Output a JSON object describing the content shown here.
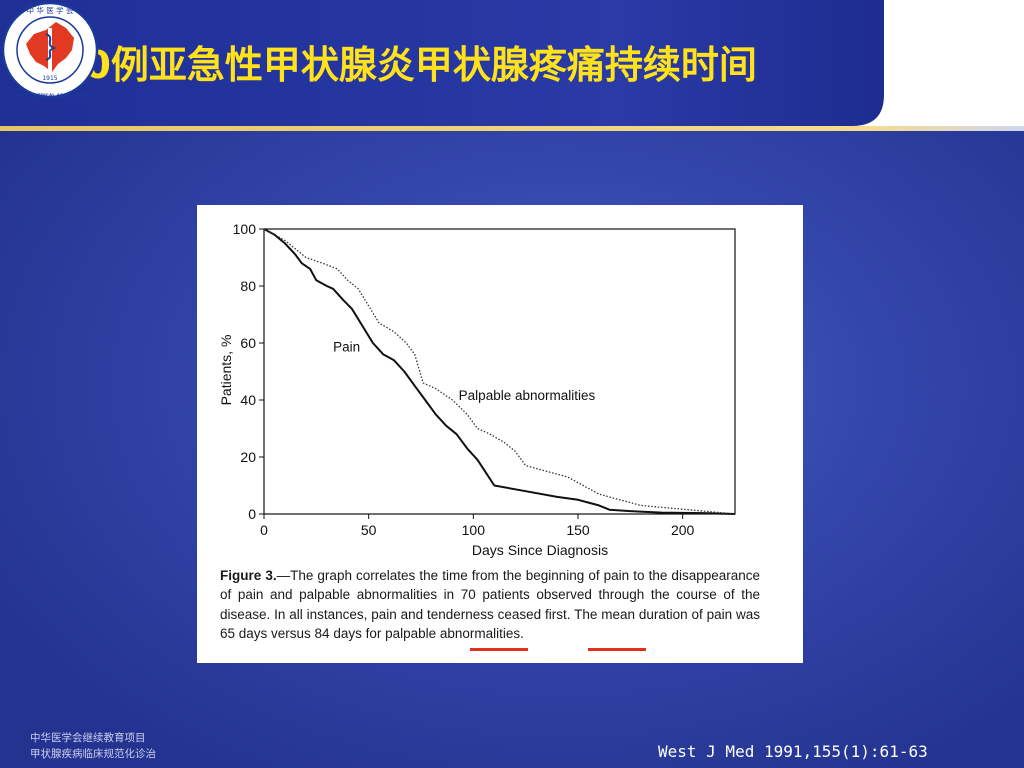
{
  "slide": {
    "title": "70例亚急性甲状腺炎甲状腺疼痛持续时间",
    "footer_line1": "中华医学会继续教育项目",
    "footer_line2": "甲状腺疾病临床规范化诊治",
    "citation": "West J Med 1991,155(1):61-63"
  },
  "logo": {
    "icon": "chinese-medical-association-seal",
    "top_text": "中 华 医 学 会",
    "ring_text": "CHINESE MEDICAL ASSOCIATION",
    "year": "1915"
  },
  "figure": {
    "caption_label": "Figure 3.",
    "caption_text": "—The graph correlates the time from the beginning of pain to the disappearance of pain and palpable abnormalities in 70 patients observed through the course of the disease. In all instances, pain and tenderness ceased first. The mean duration of pain was 65 days versus 84 days for palpable abnormalities.",
    "highlight_1": "65 days",
    "highlight_2": "84 days"
  },
  "chart_data": {
    "type": "line",
    "title": "",
    "xlabel": "Days Since Diagnosis",
    "ylabel": "Patients, %",
    "xlim": [
      0,
      225
    ],
    "ylim": [
      0,
      100
    ],
    "xticks": [
      0,
      50,
      100,
      150,
      200
    ],
    "yticks": [
      0,
      20,
      40,
      60,
      80,
      100
    ],
    "grid": false,
    "series": [
      {
        "name": "Pain",
        "style": "solid",
        "color": "#111111",
        "x": [
          0,
          5,
          10,
          15,
          18,
          22,
          25,
          30,
          33,
          38,
          42,
          47,
          52,
          57,
          62,
          67,
          72,
          77,
          82,
          87,
          92,
          97,
          102,
          110,
          125,
          140,
          150,
          155,
          160,
          165,
          175,
          190,
          210,
          225
        ],
        "y": [
          100,
          98,
          95,
          91,
          88,
          86,
          82,
          80,
          79,
          75,
          72,
          66,
          60,
          56,
          54,
          50,
          45,
          40,
          35,
          31,
          28,
          23,
          19,
          10,
          8,
          6,
          5,
          4,
          3,
          1.5,
          1,
          0.5,
          0.3,
          0
        ]
      },
      {
        "name": "Palpable abnormalities",
        "style": "dotted",
        "color": "#333333",
        "x": [
          0,
          5,
          10,
          15,
          20,
          28,
          35,
          40,
          45,
          50,
          55,
          62,
          68,
          72,
          76,
          82,
          90,
          97,
          102,
          108,
          115,
          120,
          125,
          135,
          145,
          150,
          155,
          160,
          170,
          180,
          195,
          210,
          225
        ],
        "y": [
          100,
          98,
          96,
          93,
          90,
          88,
          86,
          82,
          79,
          73,
          67,
          64,
          60,
          56,
          46,
          44,
          40,
          35,
          30,
          28,
          25,
          22,
          17,
          15,
          13,
          11,
          9,
          7,
          5,
          3,
          2,
          1,
          0
        ]
      }
    ],
    "annotations": [
      {
        "text": "Pain",
        "x": 33,
        "y": 57
      },
      {
        "text": "Palpable abnormalities",
        "x": 93,
        "y": 40
      }
    ]
  }
}
